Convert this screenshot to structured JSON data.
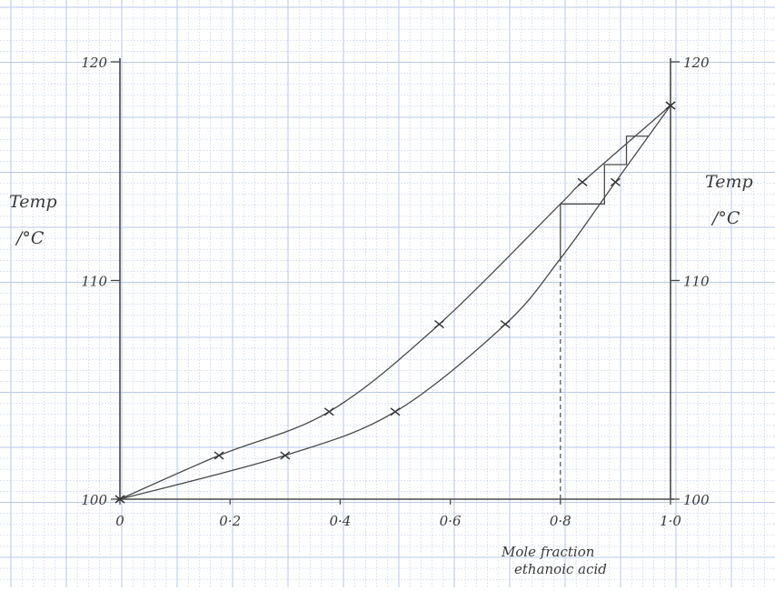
{
  "chart_data": {
    "type": "line",
    "title": "",
    "xlabel": [
      "Mole fraction",
      "ethanoic acid"
    ],
    "ylabel_left": [
      "Temp",
      "/°C"
    ],
    "ylabel_right": [
      "Temp",
      "/°C"
    ],
    "xlim": [
      0,
      1.0
    ],
    "ylim": [
      100,
      120
    ],
    "x_ticks": [
      0,
      0.2,
      0.4,
      0.6,
      0.8,
      1.0
    ],
    "x_tick_labels": [
      "0",
      "0·2",
      "0·4",
      "0·6",
      "0·8",
      "1·0"
    ],
    "y_ticks": [
      100,
      110,
      120
    ],
    "y_tick_labels_left": [
      "100",
      "110",
      "120"
    ],
    "y_tick_labels_right": [
      "100",
      "110",
      "120"
    ],
    "grid": true,
    "series": [
      {
        "role": "vapour-curve",
        "x": [
          0,
          0.18,
          0.38,
          0.58,
          0.8,
          0.84,
          1.0
        ],
        "y": [
          100,
          102,
          104,
          108,
          113.5,
          114.5,
          118
        ]
      },
      {
        "role": "liquid-curve",
        "x": [
          0,
          0.3,
          0.5,
          0.7,
          0.8,
          0.9,
          1.0
        ],
        "y": [
          100,
          102,
          104,
          108,
          111,
          114.5,
          118
        ]
      }
    ],
    "steps": [
      [
        0.8,
        111
      ],
      [
        0.8,
        113.5
      ],
      [
        0.88,
        113.5
      ],
      [
        0.88,
        115.3
      ],
      [
        0.92,
        115.3
      ],
      [
        0.92,
        116.6
      ],
      [
        0.96,
        116.6
      ]
    ],
    "dashed_line": {
      "x": 0.8,
      "y_from": 100,
      "y_to": 111
    },
    "colors": {
      "grid": "#b9c9ea",
      "line": "#4a4a4a",
      "marker": "#333333"
    }
  }
}
